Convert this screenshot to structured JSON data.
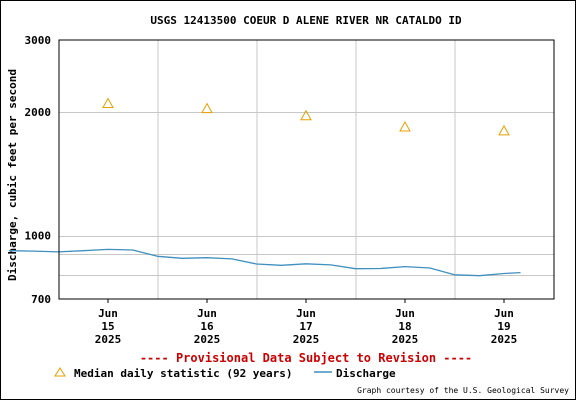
{
  "chart_data": {
    "type": "line",
    "title": "USGS 12413500 COEUR D ALENE RIVER NR CATALDO ID",
    "ylabel": "Discharge, cubic feet per second",
    "xlabel": "",
    "y_scale": "log",
    "ylim": [
      700,
      3000
    ],
    "y_ticks": [
      "3000",
      "2000",
      "1000",
      "700"
    ],
    "x_ticks": [
      {
        "lines": [
          "Jun",
          "15",
          "2025"
        ]
      },
      {
        "lines": [
          "Jun",
          "16",
          "2025"
        ]
      },
      {
        "lines": [
          "Jun",
          "17",
          "2025"
        ]
      },
      {
        "lines": [
          "Jun",
          "18",
          "2025"
        ]
      },
      {
        "lines": [
          "Jun",
          "19",
          "2025"
        ]
      }
    ],
    "grid": true,
    "series": [
      {
        "name": "Discharge",
        "kind": "line",
        "color": "#3f8fbf",
        "points": [
          [
            "2025-06-14 12:00",
            918
          ],
          [
            "2025-06-14 18:00",
            916
          ],
          [
            "2025-06-15 00:00",
            912
          ],
          [
            "2025-06-15 06:00",
            918
          ],
          [
            "2025-06-15 12:00",
            925
          ],
          [
            "2025-06-15 18:00",
            922
          ],
          [
            "2025-06-16 00:00",
            890
          ],
          [
            "2025-06-16 06:00",
            880
          ],
          [
            "2025-06-16 12:00",
            883
          ],
          [
            "2025-06-16 18:00",
            877
          ],
          [
            "2025-06-17 00:00",
            852
          ],
          [
            "2025-06-17 06:00",
            846
          ],
          [
            "2025-06-17 12:00",
            853
          ],
          [
            "2025-06-17 18:00",
            848
          ],
          [
            "2025-06-18 00:00",
            830
          ],
          [
            "2025-06-18 06:00",
            831
          ],
          [
            "2025-06-18 12:00",
            840
          ],
          [
            "2025-06-18 18:00",
            833
          ],
          [
            "2025-06-19 00:00",
            802
          ],
          [
            "2025-06-19 06:00",
            798
          ],
          [
            "2025-06-19 12:00",
            808
          ],
          [
            "2025-06-19 16:00",
            812
          ]
        ]
      },
      {
        "name": "Median daily statistic (92 years)",
        "kind": "marker",
        "marker": "triangle",
        "color": "#e8a000",
        "points": [
          [
            "2025-06-15",
            2100
          ],
          [
            "2025-06-16",
            2040
          ],
          [
            "2025-06-17",
            1960
          ],
          [
            "2025-06-18",
            1840
          ],
          [
            "2025-06-19",
            1800
          ]
        ]
      }
    ],
    "legend": {
      "position": "bottom-left",
      "items": [
        "Median daily statistic (92 years)",
        "Discharge"
      ]
    },
    "annotations": {
      "provisional": "---- Provisional Data Subject to Revision ----",
      "credit": "Graph courtesy of the U.S. Geological Survey"
    },
    "colors": {
      "grid": "#c8c8c8",
      "provisional": "#cc0000"
    }
  }
}
